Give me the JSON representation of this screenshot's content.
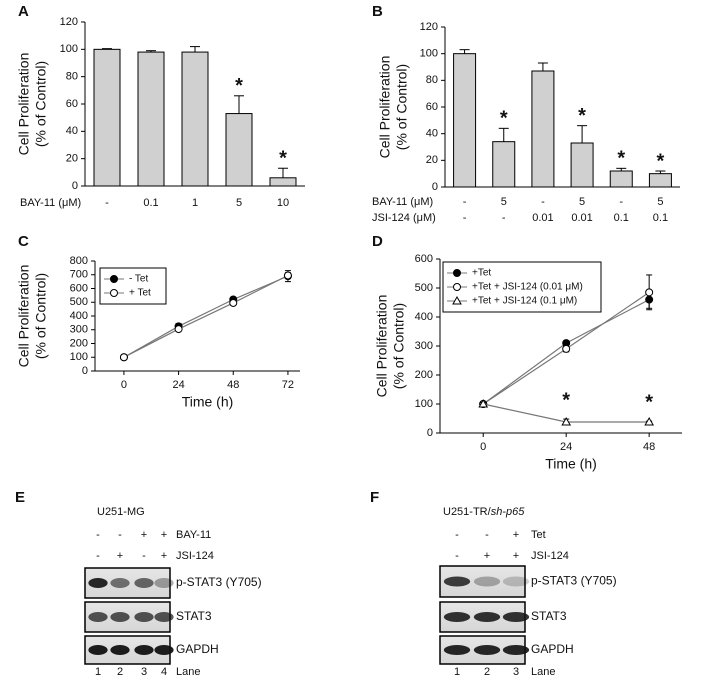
{
  "chart_data": [
    {
      "panel": "A",
      "type": "bar",
      "ylabel": [
        "Cell Proliferation",
        "(% of Control)"
      ],
      "category_rows": [
        {
          "name": "BAY-11 (μM)",
          "labels": [
            "-",
            "0.1",
            "1",
            "5",
            "10"
          ]
        }
      ],
      "values": [
        100,
        98,
        98,
        53,
        6
      ],
      "errors": [
        0.5,
        1,
        4,
        13,
        7
      ],
      "significance": [
        null,
        null,
        null,
        "*",
        "*"
      ],
      "color": "#d0d0d0",
      "ylim": [
        0,
        120
      ],
      "yticks": [
        0,
        20,
        40,
        60,
        80,
        100,
        120
      ]
    },
    {
      "panel": "B",
      "type": "bar",
      "ylabel": [
        "Cell Proliferation",
        "(% of Control)"
      ],
      "category_rows": [
        {
          "name": "BAY-11 (μM)",
          "labels": [
            "-",
            "5",
            "-",
            "5",
            "-",
            "5"
          ]
        },
        {
          "name": "JSI-124 (μM)",
          "labels": [
            "-",
            "-",
            "0.01",
            "0.01",
            "0.1",
            "0.1"
          ]
        }
      ],
      "values": [
        100,
        34,
        87,
        33,
        12,
        10
      ],
      "errors": [
        3,
        10,
        6,
        13,
        2,
        2
      ],
      "significance": [
        null,
        "*",
        null,
        "*",
        "*",
        "*"
      ],
      "color": "#d0d0d0",
      "ylim": [
        0,
        120
      ],
      "yticks": [
        0,
        20,
        40,
        60,
        80,
        100,
        120
      ]
    },
    {
      "panel": "C",
      "type": "line",
      "ylabel": [
        "Cell Proliferation",
        "(% of Control)"
      ],
      "xlabel": "Time (h)",
      "x": [
        0,
        24,
        48,
        72
      ],
      "xlim": [
        -12.7,
        77.3
      ],
      "xticks": [
        0,
        24,
        48,
        72
      ],
      "ylim": [
        0,
        800
      ],
      "yticks": [
        0,
        100,
        200,
        300,
        400,
        500,
        600,
        700,
        800
      ],
      "legend": "upper left",
      "series": [
        {
          "name": "- Tet",
          "color": "#000",
          "marker": "filled-circle",
          "values": [
            100,
            325,
            520,
            690
          ],
          "errors": [
            0,
            20,
            15,
            40
          ],
          "significance": [
            null,
            null,
            null,
            null
          ]
        },
        {
          "name": "+ Tet",
          "color": "#000",
          "marker": "open-circle",
          "values": [
            100,
            305,
            495,
            695
          ],
          "errors": [
            0,
            12,
            10,
            20
          ],
          "significance": [
            null,
            null,
            null,
            null
          ]
        }
      ]
    },
    {
      "panel": "D",
      "type": "line",
      "ylabel": [
        "Cell Proliferation",
        "(% of Control)"
      ],
      "xlabel": "Time (h)",
      "x": [
        0,
        24,
        48
      ],
      "xlim": [
        -12.5,
        57.5
      ],
      "xticks": [
        0,
        24,
        48
      ],
      "ylim": [
        0,
        600
      ],
      "yticks": [
        0,
        100,
        200,
        300,
        400,
        500,
        600
      ],
      "legend": "upper left",
      "series": [
        {
          "name": "+Tet",
          "color": "#000",
          "marker": "filled-circle",
          "values": [
            100,
            310,
            460
          ],
          "errors": [
            3,
            5,
            30
          ],
          "significance": [
            null,
            null,
            null
          ]
        },
        {
          "name": "+Tet + JSI-124 (0.01 μM)",
          "color": "#000",
          "marker": "open-circle",
          "values": [
            100,
            290,
            485
          ],
          "errors": [
            5,
            10,
            60
          ],
          "significance": [
            null,
            null,
            null
          ]
        },
        {
          "name": "+Tet + JSI-124 (0.1 μM)",
          "color": "#000",
          "marker": "open-triangle",
          "values": [
            100,
            38,
            38
          ],
          "errors": [
            5,
            10,
            3
          ],
          "significance": [
            null,
            "*",
            "*"
          ]
        }
      ]
    }
  ],
  "blots": [
    {
      "panel": "E",
      "cell_line": "U251-MG",
      "cell_line_italic": "",
      "treatments": [
        {
          "name": "BAY-11",
          "signs": [
            "-",
            "-",
            "+",
            "+"
          ]
        },
        {
          "name": "JSI-124",
          "signs": [
            "-",
            "+",
            "-",
            "+"
          ]
        }
      ],
      "bands": [
        "p-STAT3  (Y705)",
        "STAT3",
        "GAPDH"
      ],
      "lanes": [
        1,
        2,
        3,
        4
      ],
      "lane_label": "Lane"
    },
    {
      "panel": "F",
      "cell_line": "U251-TR/",
      "cell_line_italic": "sh-p65",
      "treatments": [
        {
          "name": "Tet",
          "signs": [
            "-",
            "-",
            "+"
          ]
        },
        {
          "name": "JSI-124",
          "signs": [
            "-",
            "+",
            "+"
          ]
        }
      ],
      "bands": [
        "p-STAT3  (Y705)",
        "STAT3",
        "GAPDH"
      ],
      "lanes": [
        1,
        2,
        3
      ],
      "lane_label": "Lane"
    }
  ]
}
